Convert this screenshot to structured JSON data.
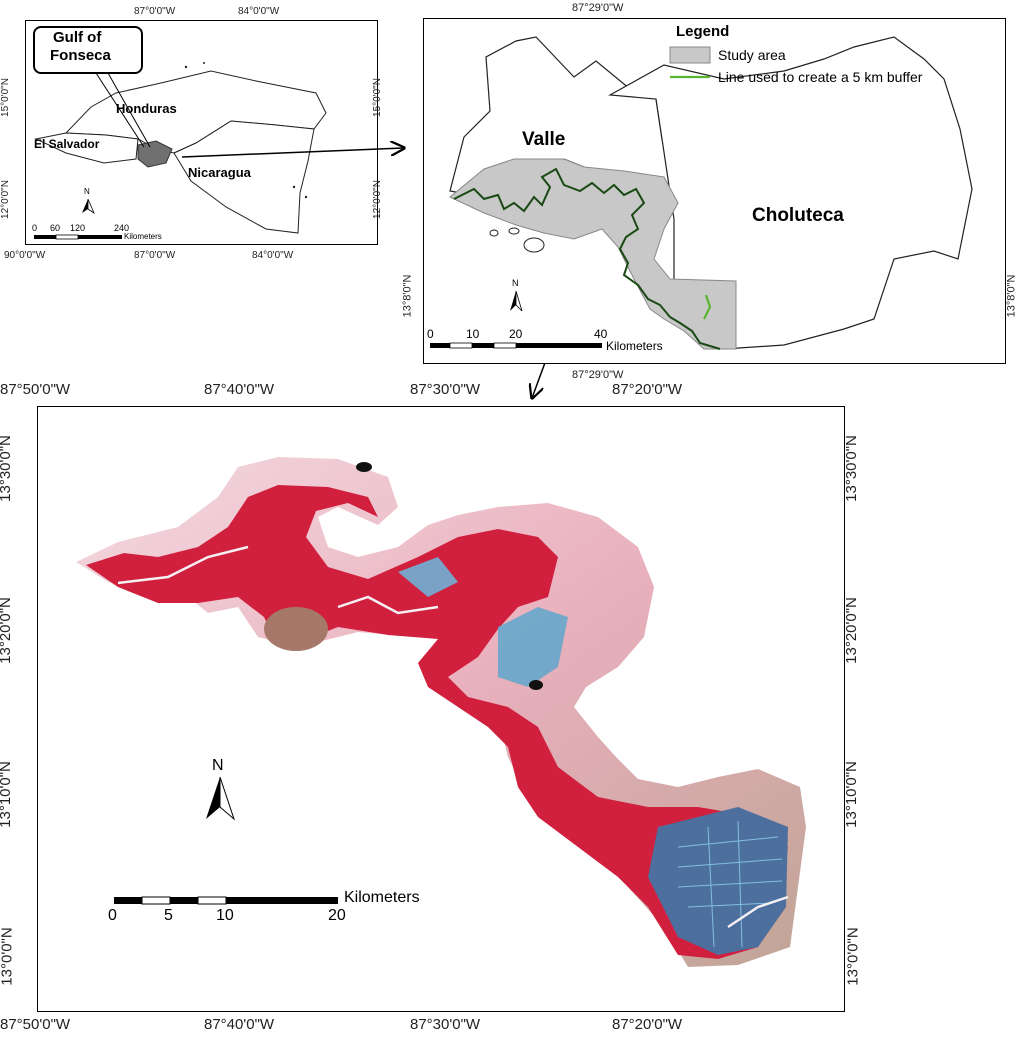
{
  "overview_map": {
    "callout": [
      "Gulf of",
      "Fonseca"
    ],
    "countries": {
      "honduras": "Honduras",
      "el_salvador": "El Salvador",
      "nicaragua": "Nicaragua"
    },
    "top_ticks": [
      "87°0'0\"W",
      "84°0'0\"W"
    ],
    "bottom_ticks": [
      "90°0'0\"W",
      "87°0'0\"W",
      "84°0'0\"W"
    ],
    "left_ticks": [
      "15°0'0\"N",
      "12°0'0\"N"
    ],
    "right_ticks": [
      "15°0'0\"N",
      "12°0'0\"N"
    ],
    "scale_numbers": [
      "0",
      "60",
      "120",
      "240"
    ],
    "scale_unit": "Kilometers",
    "north_label": "N"
  },
  "study_map": {
    "legend_title": "Legend",
    "legend_items": [
      {
        "label": "Study area",
        "color": "#c8c8c8"
      },
      {
        "label": "Line used to create a 5 km buffer",
        "color": "#5cb531"
      }
    ],
    "departments": {
      "valle": "Valle",
      "choluteca": "Choluteca"
    },
    "top_tick": "87°29'0\"W",
    "bottom_tick": "87°29'0\"W",
    "left_tick": "13°8'0\"N",
    "right_tick": "13°8'0\"N",
    "scale_numbers": [
      "0",
      "10",
      "20",
      "40"
    ],
    "scale_unit": "Kilometers",
    "north_label": "N"
  },
  "image_map": {
    "top_ticks": [
      "87°50'0\"W",
      "87°40'0\"W",
      "87°30'0\"W",
      "87°20'0\"W"
    ],
    "bottom_ticks": [
      "87°50'0\"W",
      "87°40'0\"W",
      "87°30'0\"W",
      "87°20'0\"W"
    ],
    "left_ticks": [
      "13°30'0\"N",
      "13°20'0\"N",
      "13°10'0\"N",
      "13°0'0\"N"
    ],
    "right_ticks": [
      "13°30'0\"N",
      "13°20'0\"N",
      "13°10'0\"N",
      "13°0'0\"N"
    ],
    "scale_numbers": [
      "0",
      "5",
      "10",
      "20"
    ],
    "scale_unit": "Kilometers",
    "north_label": "N",
    "colors": {
      "mangrove": "#d0203e",
      "water": "#3f6a9a",
      "shrimp_ponds": "#7fc6e6",
      "bare": "#f2c7d4"
    }
  }
}
